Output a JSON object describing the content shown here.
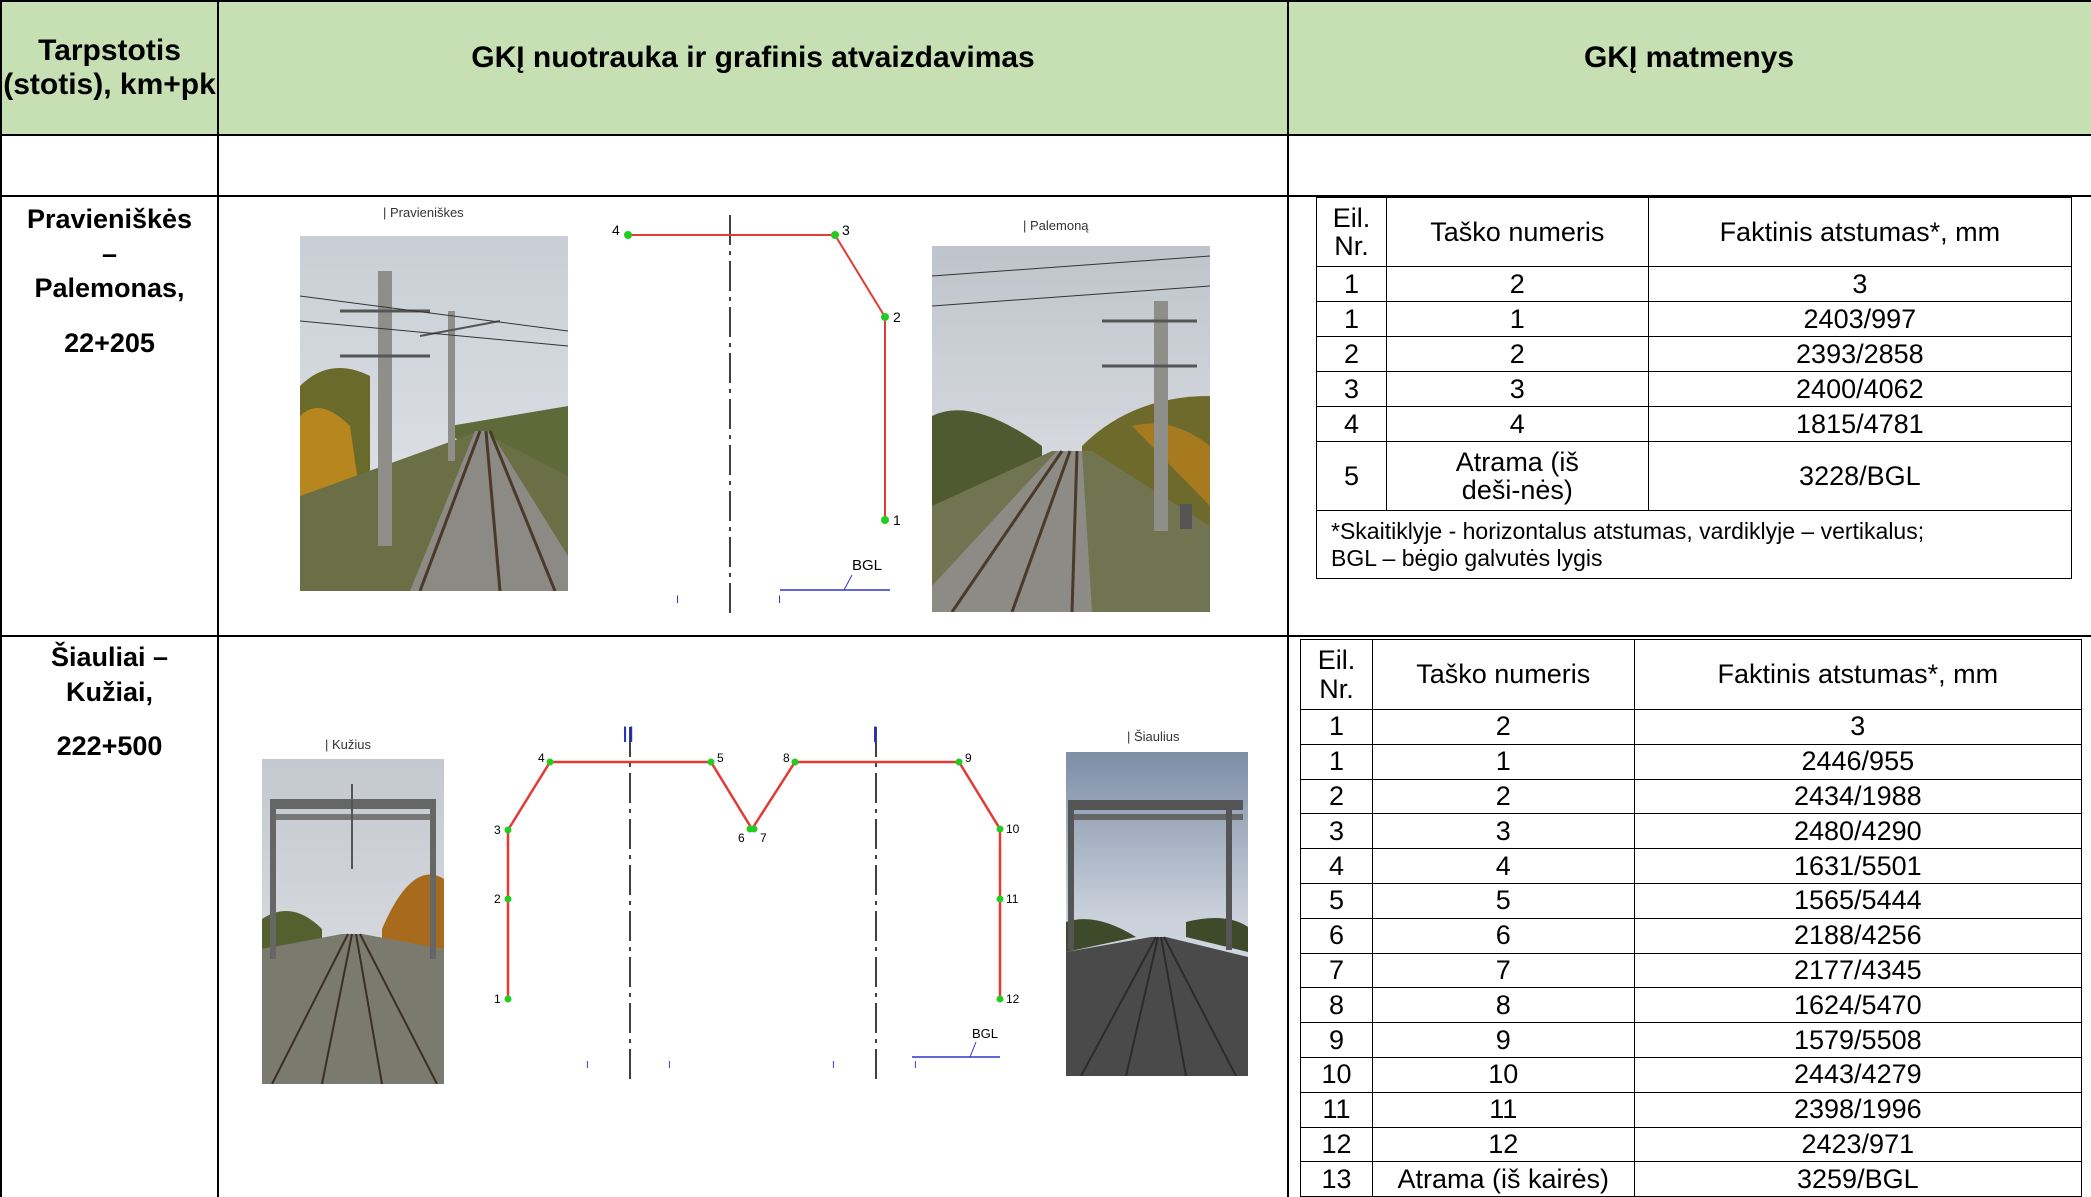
{
  "header": {
    "col1": "Tarpstotis (stotis), km+pk",
    "col2": "GKĮ nuotrauka ir grafinis atvaizdavimas",
    "col3": "GKĮ matmenys"
  },
  "sections": [
    {
      "location": {
        "line1": "Pravieniškės",
        "line2": "–",
        "line3": "Palemonas,",
        "km": "22+205"
      },
      "photo_left_caption": "| Pravieniškes",
      "photo_right_caption": "| Palemoną",
      "diagram_labels": {
        "p1": "1",
        "p2": "2",
        "p3": "3",
        "p4": "4",
        "bgl": "BGL"
      },
      "table": {
        "headers": [
          "Eil. Nr.",
          "Taško numeris",
          "Faktinis atstumas*, mm"
        ],
        "index_row": [
          "1",
          "2",
          "3"
        ],
        "rows": [
          [
            "1",
            "1",
            "2403/997"
          ],
          [
            "2",
            "2",
            "2393/2858"
          ],
          [
            "3",
            "3",
            "2400/4062"
          ],
          [
            "4",
            "4",
            "1815/4781"
          ],
          [
            "5",
            "Atrama (iš deši-nės)",
            "3228/BGL"
          ]
        ],
        "note_line1": "*Skaitiklyje - horizontalus atstumas, vardiklyje – vertikalus;",
        "note_line2": "BGL – bėgio galvutės lygis"
      }
    },
    {
      "location": {
        "line1": "Šiauliai –",
        "line2": "Kužiai,",
        "km": "222+500"
      },
      "photo_left_caption": "| Kužius",
      "photo_right_caption": "| Šiaulius",
      "diagram_labels": {
        "track_ii": "II",
        "track_i": "I",
        "p1": "1",
        "p2": "2",
        "p3": "3",
        "p4": "4",
        "p5": "5",
        "p6": "6",
        "p7": "7",
        "p8": "8",
        "p9": "9",
        "p10": "10",
        "p11": "11",
        "p12": "12",
        "bgl": "BGL"
      },
      "table": {
        "headers": [
          "Eil. Nr.",
          "Taško numeris",
          "Faktinis atstumas*, mm"
        ],
        "index_row": [
          "1",
          "2",
          "3"
        ],
        "rows": [
          [
            "1",
            "1",
            "2446/955"
          ],
          [
            "2",
            "2",
            "2434/1988"
          ],
          [
            "3",
            "3",
            "2480/4290"
          ],
          [
            "4",
            "4",
            "1631/5501"
          ],
          [
            "5",
            "5",
            "1565/5444"
          ],
          [
            "6",
            "6",
            "2188/4256"
          ],
          [
            "7",
            "7",
            "2177/4345"
          ],
          [
            "8",
            "8",
            "1624/5470"
          ],
          [
            "9",
            "9",
            "1579/5508"
          ],
          [
            "10",
            "10",
            "2443/4279"
          ],
          [
            "11",
            "11",
            "2398/1996"
          ],
          [
            "12",
            "12",
            "2423/971"
          ],
          [
            "13",
            "Atrama (iš kairės)",
            "3259/BGL"
          ]
        ]
      }
    }
  ],
  "colors": {
    "header_bg": "#c6e0b4",
    "profile_line": "#e53935",
    "point": "#22cc22",
    "bgl_line": "#3333cc"
  }
}
